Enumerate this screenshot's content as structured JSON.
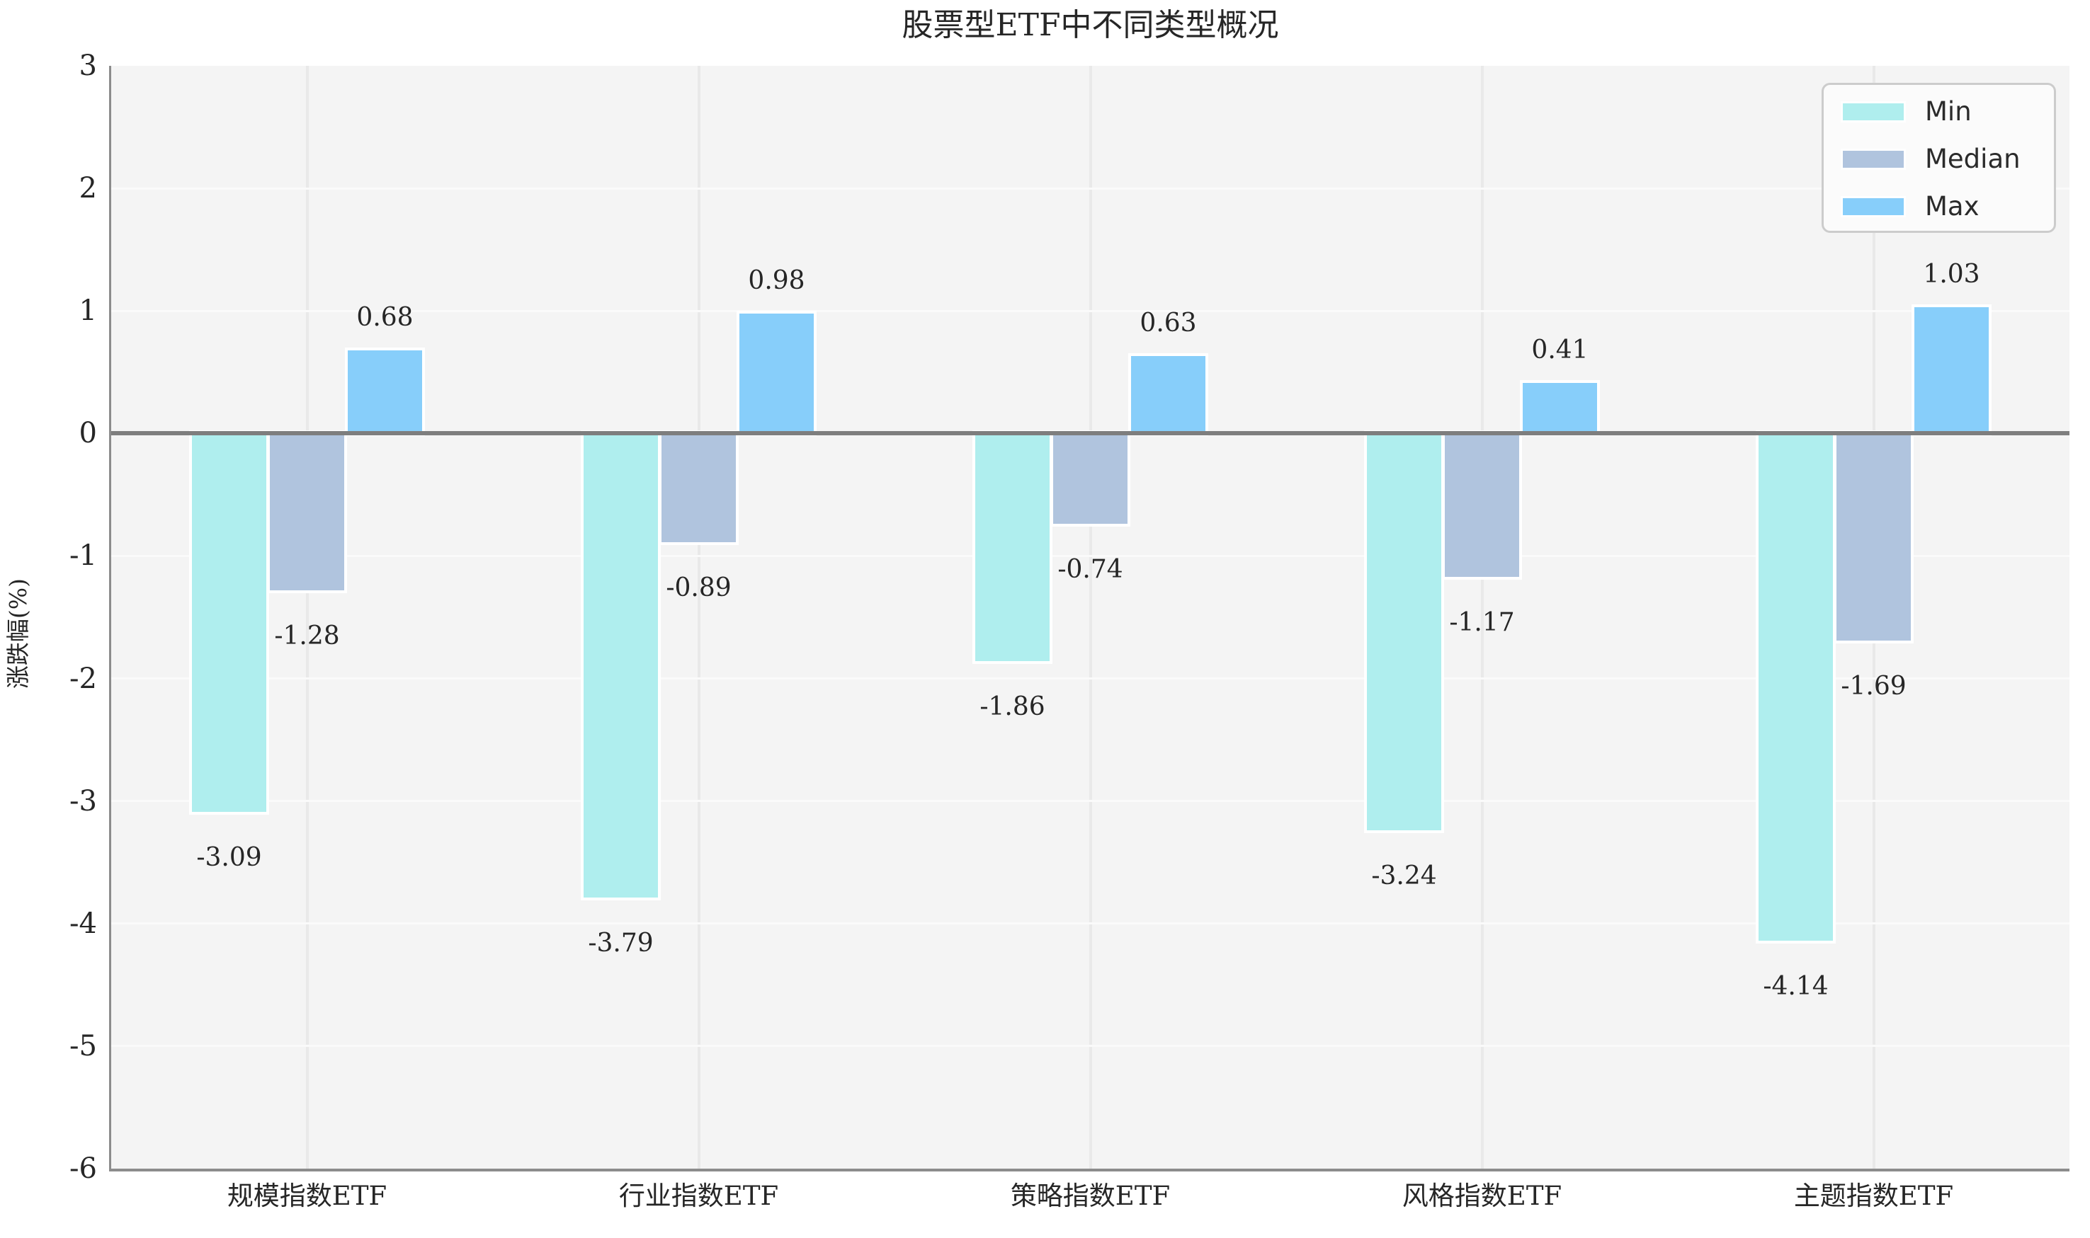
{
  "chart_data": {
    "type": "bar",
    "title": "股票型ETF中不同类型概况",
    "xlabel": "",
    "ylabel": "涨跌幅(%)",
    "categories": [
      "规模指数ETF",
      "行业指数ETF",
      "策略指数ETF",
      "风格指数ETF",
      "主题指数ETF"
    ],
    "series": [
      {
        "name": "Min",
        "color": "#AFEEEE",
        "values": [
          -3.09,
          -3.79,
          -1.86,
          -3.24,
          -4.14
        ]
      },
      {
        "name": "Median",
        "color": "#B0C4DE",
        "values": [
          -1.28,
          -0.89,
          -0.74,
          -1.17,
          -1.69
        ]
      },
      {
        "name": "Max",
        "color": "#87CEFA",
        "values": [
          0.68,
          0.98,
          0.63,
          0.41,
          1.03
        ]
      }
    ],
    "bar_value_labels": [
      [
        "-3.09",
        "-3.79",
        "-1.86",
        "-3.24",
        "-4.14"
      ],
      [
        "-1.28",
        "-0.89",
        "-0.74",
        "-1.17",
        "-1.69"
      ],
      [
        "0.68",
        "0.98",
        "0.63",
        "0.41",
        "1.03"
      ]
    ],
    "ylim": [
      -6,
      3
    ],
    "yticks": [
      3,
      2,
      1,
      0,
      -1,
      -2,
      -3,
      -4,
      -5,
      -6
    ],
    "grid": true,
    "zero_line": 0,
    "legend_position": "upper right",
    "legend_labels": [
      "Min",
      "Median",
      "Max"
    ],
    "style": {
      "page_background": "#ffffff",
      "plot_background": "#f4f4f4",
      "horizontal_grid_color": "#fafafa",
      "vertical_grid_color": "#e9e9e9",
      "zero_line_color": "#7e7e7e",
      "spine_color": "#8c8c8c",
      "text_color": "#262626",
      "legend_background": "#fbfbfb",
      "legend_border": "#cccccc"
    }
  }
}
